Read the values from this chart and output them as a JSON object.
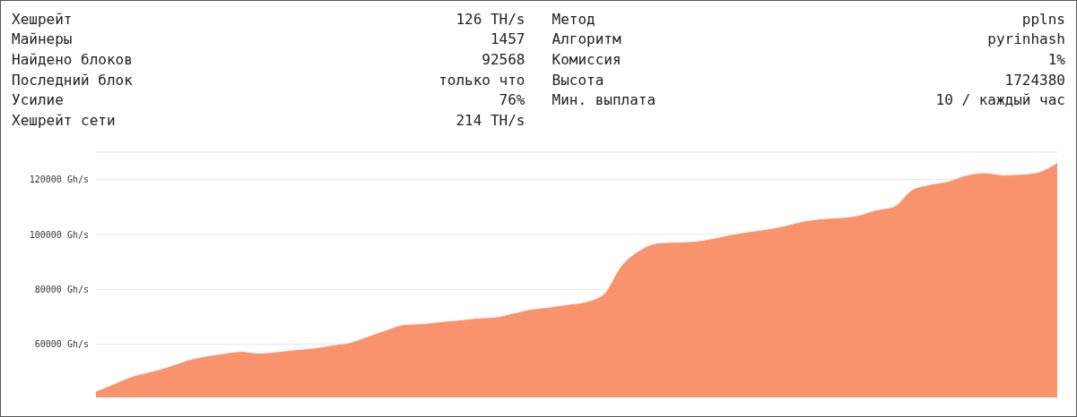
{
  "chart_data": {
    "type": "area",
    "annotations": [
      "Хешрейт",
      "126 TH/s",
      "Майнеры",
      "1457",
      "Найдено блоков",
      "92568",
      "Последний блок",
      "только что",
      "Усилие",
      "76%",
      "Хешрейт сети",
      "214 TH/s",
      "Метод",
      "pplns",
      "Алгоритм",
      "pyrinhash",
      "Комиссия",
      "1%",
      "Высота",
      "1724380",
      "Мин. выплата",
      "10 / каждый час"
    ],
    "categories": [
      null,
      null,
      null,
      null,
      null,
      null,
      null,
      null,
      null,
      null,
      null,
      null,
      null,
      null,
      null,
      null,
      null,
      null,
      null,
      null,
      null,
      null,
      null,
      null,
      null,
      null,
      null,
      null,
      null,
      null,
      null,
      null,
      null,
      null,
      null,
      null,
      null,
      null,
      null,
      null,
      null,
      null,
      null,
      null,
      null,
      null,
      null,
      null,
      null,
      null,
      null,
      null,
      null,
      null
    ],
    "series": [
      {
        "color": "#f9936e",
        "values": [
          42600,
          45300,
          48000,
          49700,
          51500,
          53800,
          55300,
          56300,
          57100,
          56500,
          57000,
          57700,
          58300,
          59350,
          60300,
          62600,
          64900,
          66900,
          67200,
          67900,
          68500,
          69200,
          69600,
          71000,
          72500,
          73200,
          74200,
          75200,
          78000,
          88500,
          94000,
          96600,
          96900,
          97200,
          98200,
          99600,
          100700,
          101600,
          102900,
          104500,
          105400,
          105800,
          106600,
          108600,
          109900,
          116000,
          117900,
          119100,
          121300,
          122200,
          121400,
          121600,
          122500,
          125900
        ]
      }
    ],
    "ylim": [
      40700,
      130000
    ],
    "yticks": [
      {
        "value": 60000,
        "label": "60000 Gh/s"
      },
      {
        "value": 80000,
        "label": "80000 Gh/s"
      },
      {
        "value": 100000,
        "label": "100000 Gh/s"
      },
      {
        "value": 120000,
        "label": "120000 Gh/s"
      }
    ],
    "grid": "y",
    "legend": false,
    "tick_labels": "y"
  }
}
